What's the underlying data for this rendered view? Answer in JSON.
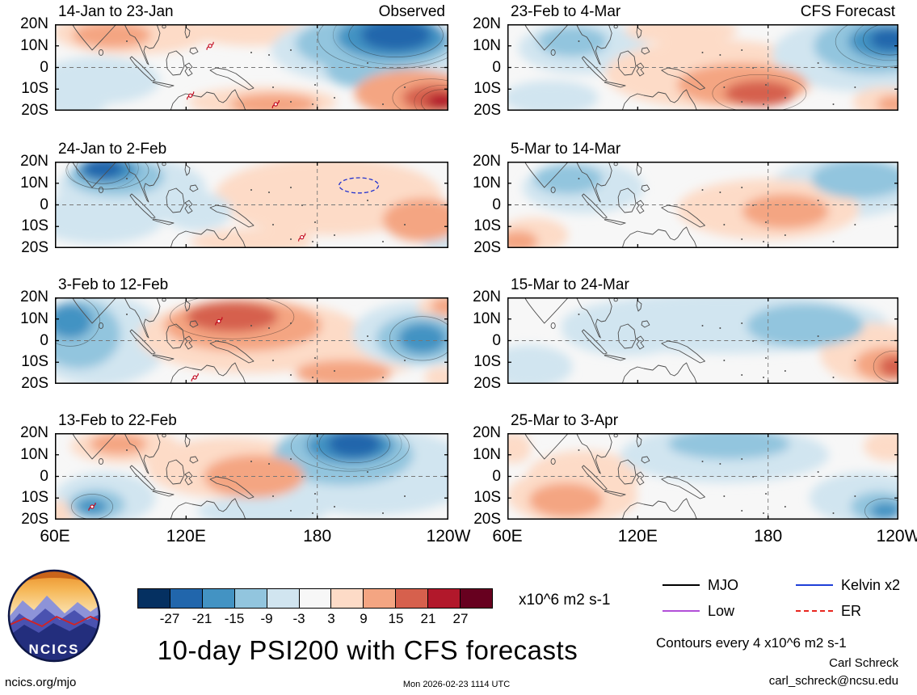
{
  "meta": {
    "title": "10-day PSI200 with CFS forecasts",
    "units_label": "x10^6 m2 s-1",
    "contours_note": "Contours every 4 x10^6 m2 s-1",
    "credit_name": "Carl Schreck",
    "credit_email": "carl_schreck@ncsu.edu",
    "footer_left": "ncics.org/mjo",
    "footer_center": "Mon 2026-02-23 1114 UTC",
    "logo_text": "NCICS"
  },
  "legend": {
    "items": [
      {
        "label": "MJO",
        "color": "#000000",
        "style": "solid"
      },
      {
        "label": "Kelvin x2",
        "color": "#1f3fd8",
        "style": "solid"
      },
      {
        "label": "Low",
        "color": "#b24fd8",
        "style": "solid"
      },
      {
        "label": "ER",
        "color": "#e8261f",
        "style": "dashed"
      }
    ]
  },
  "chart_data": {
    "type": "heatmap",
    "title": "10-day PSI200 with CFS forecasts",
    "units": "x10^6 m2 s-1",
    "contour_interval_note": "Contours every 4 x10^6 m2 s-1",
    "columns": [
      "Observed",
      "CFS Forecast"
    ],
    "lon_ticks": [
      "60E",
      "120E",
      "180",
      "120W"
    ],
    "lat_ticks": [
      "20N",
      "10N",
      "0",
      "10S",
      "20S"
    ],
    "lon_domain_deg_east": [
      60,
      240
    ],
    "lat_domain": [
      -20,
      20
    ],
    "colorbar": {
      "boundary_labels": [
        -27,
        -21,
        -15,
        -9,
        -3,
        3,
        9,
        15,
        21,
        27
      ],
      "colors": [
        "#053061",
        "#2166ac",
        "#4393c3",
        "#92c5de",
        "#d1e5f0",
        "#f7f7f7",
        "#fddbc7",
        "#f4a582",
        "#d6604d",
        "#b2182b",
        "#67001f"
      ]
    },
    "panels": [
      {
        "title": "14-Jan to 23-Jan",
        "column": "Observed",
        "corner_label": "Observed",
        "anomalies": [
          [
            95,
            16,
            36,
            10,
            3
          ],
          [
            86,
            15,
            18,
            6,
            9
          ],
          [
            150,
            17,
            28,
            7,
            3
          ],
          [
            205,
            8,
            46,
            16,
            -3
          ],
          [
            206,
            11,
            36,
            13,
            -9
          ],
          [
            214,
            14,
            25,
            10,
            -15
          ],
          [
            216,
            15,
            16,
            7,
            -21
          ],
          [
            197,
            -1,
            13,
            8,
            -9
          ],
          [
            80,
            -6,
            28,
            11,
            -3
          ],
          [
            69,
            -16,
            15,
            7,
            -3
          ],
          [
            155,
            -16,
            34,
            7,
            3
          ],
          [
            160,
            -17,
            20,
            5,
            9
          ],
          [
            224,
            -12,
            27,
            11,
            9
          ],
          [
            232,
            -14,
            13,
            6,
            15
          ],
          [
            237,
            -16,
            7,
            4,
            21
          ]
        ],
        "cyclones": [
          [
            131,
            10
          ],
          [
            122,
            -13
          ],
          [
            161,
            -17
          ]
        ]
      },
      {
        "title": "24-Jan to 2-Feb",
        "column": "Observed",
        "anomalies": [
          [
            95,
            8,
            34,
            14,
            -3
          ],
          [
            88,
            13,
            22,
            9,
            -9
          ],
          [
            84,
            16,
            14,
            6,
            -15
          ],
          [
            82,
            17,
            9,
            5,
            -21
          ],
          [
            80,
            -6,
            30,
            12,
            -3
          ],
          [
            185,
            4,
            52,
            18,
            3
          ],
          [
            228,
            -7,
            18,
            10,
            9
          ],
          [
            150,
            -17,
            28,
            6,
            3
          ],
          [
            238,
            -17,
            10,
            6,
            -3
          ],
          [
            125,
            -3,
            16,
            9,
            -3
          ]
        ],
        "cyclones": [
          [
            173,
            -15
          ]
        ],
        "kelvin_ellipse": {
          "lon": 199,
          "lat": 9,
          "rx": 9,
          "ry": 3.5
        }
      },
      {
        "title": "3-Feb to 12-Feb",
        "column": "Observed",
        "anomalies": [
          [
            80,
            0,
            32,
            21,
            -3
          ],
          [
            71,
            3,
            19,
            16,
            -9
          ],
          [
            67,
            9,
            10,
            8,
            -15
          ],
          [
            150,
            2,
            52,
            17,
            3
          ],
          [
            146,
            7,
            36,
            12,
            9
          ],
          [
            141,
            11,
            21,
            7,
            15
          ],
          [
            205,
            -4,
            26,
            12,
            3
          ],
          [
            192,
            -15,
            22,
            6,
            9
          ],
          [
            226,
            3,
            30,
            15,
            -3
          ],
          [
            227,
            1,
            20,
            11,
            -9
          ],
          [
            228,
            1,
            11,
            7,
            -15
          ],
          [
            238,
            15,
            12,
            7,
            3
          ],
          [
            239,
            16,
            7,
            4,
            9
          ],
          [
            237,
            -17,
            8,
            5,
            3
          ]
        ],
        "cyclones": [
          [
            135,
            9
          ],
          [
            124,
            -17
          ]
        ]
      },
      {
        "title": "13-Feb to 22-Feb",
        "column": "Observed",
        "anomalies": [
          [
            205,
            2,
            48,
            20,
            -3
          ],
          [
            192,
            10,
            32,
            14,
            -9
          ],
          [
            195,
            14,
            20,
            8,
            -15
          ],
          [
            197,
            15,
            12,
            6,
            -21
          ],
          [
            92,
            14,
            25,
            8,
            3
          ],
          [
            89,
            15,
            13,
            5,
            9
          ],
          [
            140,
            4,
            38,
            14,
            3
          ],
          [
            151,
            0,
            23,
            10,
            9
          ],
          [
            83,
            -10,
            23,
            12,
            -3
          ],
          [
            79,
            -13,
            13,
            7,
            -9
          ],
          [
            77,
            -14,
            7,
            4,
            -15
          ],
          [
            62,
            -17,
            7,
            6,
            3
          ],
          [
            155,
            -16,
            30,
            7,
            -3
          ]
        ],
        "cyclones": [
          [
            77,
            -14
          ]
        ]
      },
      {
        "title": "23-Feb to 4-Mar",
        "column": "CFS Forecast",
        "corner_label": "CFS Forecast",
        "anomalies": [
          [
            95,
            9,
            30,
            12,
            -3
          ],
          [
            90,
            12,
            16,
            7,
            -9
          ],
          [
            140,
            17,
            26,
            6,
            3
          ],
          [
            155,
            -3,
            50,
            16,
            3
          ],
          [
            168,
            -8,
            30,
            10,
            9
          ],
          [
            176,
            -12,
            16,
            6,
            15
          ],
          [
            222,
            6,
            40,
            17,
            -3
          ],
          [
            229,
            10,
            28,
            13,
            -9
          ],
          [
            234,
            12,
            17,
            8,
            -15
          ],
          [
            236,
            13,
            9,
            5,
            -21
          ],
          [
            80,
            -14,
            22,
            8,
            -3
          ],
          [
            234,
            -16,
            15,
            7,
            3
          ],
          [
            238,
            -17,
            8,
            4,
            9
          ]
        ],
        "cyclones": []
      },
      {
        "title": "5-Mar to 14-Mar",
        "column": "CFS Forecast",
        "anomalies": [
          [
            95,
            8,
            28,
            12,
            -3
          ],
          [
            88,
            12,
            16,
            7,
            -9
          ],
          [
            215,
            8,
            34,
            14,
            -3
          ],
          [
            222,
            12,
            22,
            9,
            -9
          ],
          [
            180,
            -2,
            42,
            14,
            3
          ],
          [
            188,
            -3,
            20,
            8,
            9
          ],
          [
            72,
            -14,
            16,
            8,
            3
          ],
          [
            65,
            -17,
            9,
            5,
            9
          ]
        ],
        "cyclones": []
      },
      {
        "title": "15-Mar to 24-Mar",
        "column": "CFS Forecast",
        "anomalies": [
          [
            160,
            8,
            75,
            14,
            -3
          ],
          [
            115,
            5,
            30,
            12,
            -3
          ],
          [
            197,
            7,
            27,
            10,
            -9
          ],
          [
            70,
            -12,
            20,
            10,
            -3
          ],
          [
            228,
            -6,
            24,
            14,
            3
          ],
          [
            235,
            -11,
            15,
            8,
            9
          ],
          [
            238,
            -12,
            7,
            5,
            15
          ]
        ],
        "cyclones": []
      },
      {
        "title": "25-Mar to 3-Apr",
        "column": "CFS Forecast",
        "anomalies": [
          [
            95,
            0,
            26,
            12,
            3
          ],
          [
            90,
            -9,
            30,
            13,
            3
          ],
          [
            87,
            -11,
            17,
            8,
            9
          ],
          [
            160,
            10,
            48,
            13,
            -3
          ],
          [
            162,
            15,
            28,
            7,
            -9
          ],
          [
            225,
            -10,
            26,
            12,
            -3
          ],
          [
            231,
            -14,
            13,
            7,
            -9
          ],
          [
            234,
            -16,
            7,
            4,
            -15
          ],
          [
            236,
            14,
            12,
            7,
            3
          ],
          [
            63,
            13,
            8,
            7,
            3
          ]
        ],
        "cyclones": []
      }
    ]
  }
}
